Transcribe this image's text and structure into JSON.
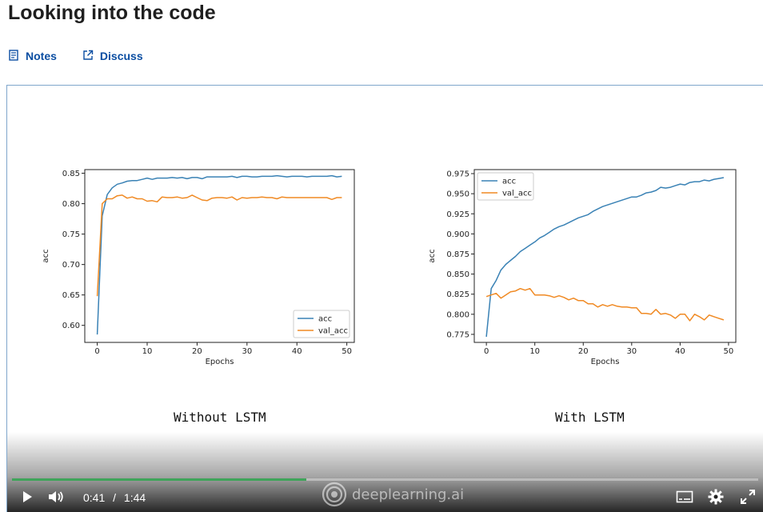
{
  "page": {
    "title": "Looking into the code"
  },
  "links": {
    "notes": "Notes",
    "discuss": "Discuss"
  },
  "captions": {
    "left": "Without LSTM",
    "right": "With LSTM"
  },
  "player": {
    "current_time": "0:41",
    "separator": "/",
    "duration": "1:44",
    "progress": 0.394,
    "brand": "deeplearning.ai",
    "accent": "#3fa45a"
  },
  "icons": [
    "notes-icon",
    "external-link-icon",
    "play-icon",
    "volume-icon",
    "subtitles-icon",
    "settings-icon",
    "fullscreen-icon",
    "deeplearning-logo-icon"
  ],
  "chart_data": [
    {
      "type": "line",
      "xlabel": "Epochs",
      "ylabel": "acc",
      "xlim": [
        -2.5,
        51.5
      ],
      "ylim": [
        0.572,
        0.856
      ],
      "xticks": [
        0,
        10,
        20,
        30,
        40,
        50
      ],
      "yticks": [
        0.6,
        0.65,
        0.7,
        0.75,
        0.8,
        0.85
      ],
      "ytick_labels": [
        "0.60",
        "0.65",
        "0.70",
        "0.75",
        "0.80",
        "0.85"
      ],
      "legend": "lower-right",
      "x": [
        0,
        1,
        2,
        3,
        4,
        5,
        6,
        7,
        8,
        9,
        10,
        11,
        12,
        13,
        14,
        15,
        16,
        17,
        18,
        19,
        20,
        21,
        22,
        23,
        24,
        25,
        26,
        27,
        28,
        29,
        30,
        31,
        32,
        33,
        34,
        35,
        36,
        37,
        38,
        39,
        40,
        41,
        42,
        43,
        44,
        45,
        46,
        47,
        48,
        49
      ],
      "series": [
        {
          "name": "acc",
          "color": "#3a82b5",
          "values": [
            0.585,
            0.78,
            0.815,
            0.826,
            0.832,
            0.834,
            0.837,
            0.838,
            0.838,
            0.84,
            0.842,
            0.84,
            0.842,
            0.842,
            0.842,
            0.843,
            0.842,
            0.843,
            0.841,
            0.843,
            0.843,
            0.841,
            0.844,
            0.844,
            0.844,
            0.844,
            0.844,
            0.845,
            0.843,
            0.845,
            0.845,
            0.844,
            0.844,
            0.845,
            0.845,
            0.845,
            0.846,
            0.845,
            0.844,
            0.845,
            0.845,
            0.845,
            0.844,
            0.845,
            0.845,
            0.845,
            0.845,
            0.846,
            0.844,
            0.845
          ]
        },
        {
          "name": "val_acc",
          "color": "#f08a24",
          "values": [
            0.648,
            0.8,
            0.808,
            0.808,
            0.813,
            0.814,
            0.809,
            0.811,
            0.808,
            0.808,
            0.804,
            0.805,
            0.803,
            0.811,
            0.81,
            0.81,
            0.811,
            0.809,
            0.81,
            0.814,
            0.81,
            0.806,
            0.805,
            0.809,
            0.81,
            0.81,
            0.809,
            0.811,
            0.806,
            0.81,
            0.809,
            0.81,
            0.81,
            0.811,
            0.81,
            0.81,
            0.808,
            0.811,
            0.81,
            0.81,
            0.81,
            0.81,
            0.81,
            0.81,
            0.81,
            0.81,
            0.81,
            0.807,
            0.81,
            0.81
          ]
        }
      ]
    },
    {
      "type": "line",
      "xlabel": "Epochs",
      "ylabel": "acc",
      "xlim": [
        -2.5,
        51.5
      ],
      "ylim": [
        0.765,
        0.98
      ],
      "xticks": [
        0,
        10,
        20,
        30,
        40,
        50
      ],
      "yticks": [
        0.775,
        0.8,
        0.825,
        0.85,
        0.875,
        0.9,
        0.925,
        0.95,
        0.975
      ],
      "ytick_labels": [
        "0.775",
        "0.800",
        "0.825",
        "0.850",
        "0.875",
        "0.900",
        "0.925",
        "0.950",
        "0.975"
      ],
      "legend": "upper-left",
      "x": [
        0,
        1,
        2,
        3,
        4,
        5,
        6,
        7,
        8,
        9,
        10,
        11,
        12,
        13,
        14,
        15,
        16,
        17,
        18,
        19,
        20,
        21,
        22,
        23,
        24,
        25,
        26,
        27,
        28,
        29,
        30,
        31,
        32,
        33,
        34,
        35,
        36,
        37,
        38,
        39,
        40,
        41,
        42,
        43,
        44,
        45,
        46,
        47,
        48,
        49
      ],
      "series": [
        {
          "name": "acc",
          "color": "#3a82b5",
          "values": [
            0.772,
            0.832,
            0.842,
            0.855,
            0.862,
            0.867,
            0.872,
            0.878,
            0.882,
            0.886,
            0.89,
            0.895,
            0.898,
            0.902,
            0.906,
            0.909,
            0.911,
            0.914,
            0.917,
            0.92,
            0.922,
            0.924,
            0.928,
            0.931,
            0.934,
            0.936,
            0.938,
            0.94,
            0.942,
            0.944,
            0.946,
            0.946,
            0.948,
            0.951,
            0.952,
            0.954,
            0.958,
            0.957,
            0.958,
            0.96,
            0.962,
            0.961,
            0.964,
            0.965,
            0.965,
            0.967,
            0.966,
            0.968,
            0.969,
            0.97
          ]
        },
        {
          "name": "val_acc",
          "color": "#f08a24",
          "values": [
            0.822,
            0.824,
            0.826,
            0.82,
            0.824,
            0.828,
            0.829,
            0.832,
            0.83,
            0.832,
            0.824,
            0.824,
            0.824,
            0.823,
            0.821,
            0.823,
            0.821,
            0.818,
            0.82,
            0.817,
            0.817,
            0.813,
            0.813,
            0.809,
            0.812,
            0.81,
            0.812,
            0.81,
            0.809,
            0.809,
            0.808,
            0.808,
            0.801,
            0.801,
            0.8,
            0.806,
            0.8,
            0.801,
            0.799,
            0.795,
            0.8,
            0.8,
            0.792,
            0.8,
            0.797,
            0.793,
            0.799,
            0.797,
            0.795,
            0.793
          ]
        }
      ]
    }
  ]
}
